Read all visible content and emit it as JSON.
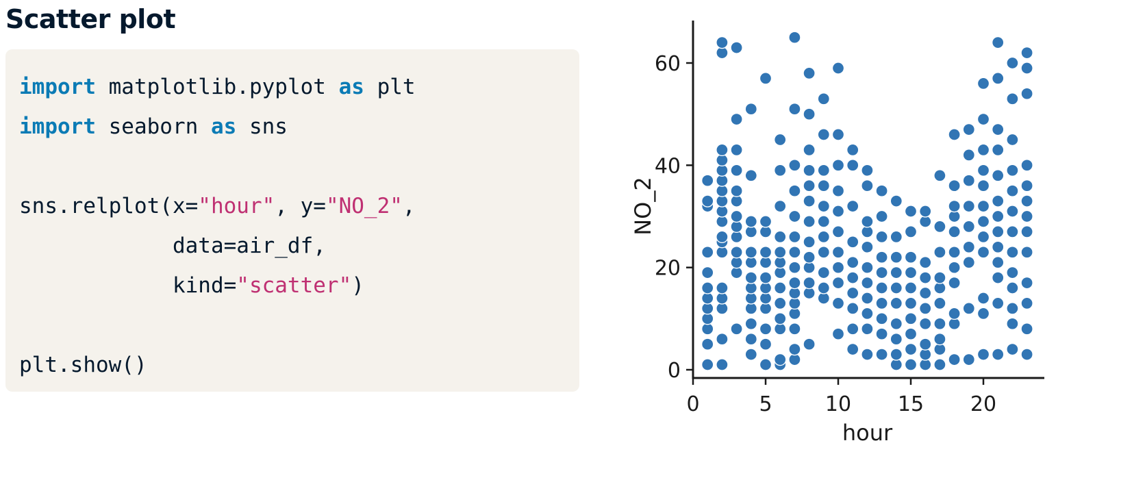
{
  "slide": {
    "title": "Scatter plot"
  },
  "code": {
    "lines": [
      [
        {
          "t": "import",
          "c": "kw"
        },
        {
          "t": " matplotlib.pyplot ",
          "c": "plain"
        },
        {
          "t": "as",
          "c": "kw"
        },
        {
          "t": " plt",
          "c": "plain"
        }
      ],
      [
        {
          "t": "import",
          "c": "kw"
        },
        {
          "t": " seaborn ",
          "c": "plain"
        },
        {
          "t": "as",
          "c": "kw"
        },
        {
          "t": " sns",
          "c": "plain"
        }
      ],
      [],
      [
        {
          "t": "sns.relplot(x=",
          "c": "plain"
        },
        {
          "t": "\"hour\"",
          "c": "str"
        },
        {
          "t": ", y=",
          "c": "plain"
        },
        {
          "t": "\"NO_2\"",
          "c": "str"
        },
        {
          "t": ",",
          "c": "plain"
        }
      ],
      [
        {
          "t": "            data=air_df,",
          "c": "plain"
        }
      ],
      [
        {
          "t": "            kind=",
          "c": "plain"
        },
        {
          "t": "\"scatter\"",
          "c": "str"
        },
        {
          "t": ")",
          "c": "plain"
        }
      ],
      [],
      [
        {
          "t": "plt.show()",
          "c": "plain"
        }
      ]
    ]
  },
  "chart_data": {
    "type": "scatter",
    "title": "",
    "xlabel": "hour",
    "ylabel": "NO_2",
    "xlim": [
      0,
      24
    ],
    "ylim": [
      0,
      67
    ],
    "xticks": [
      0,
      5,
      10,
      15,
      20
    ],
    "yticks": [
      0,
      20,
      40,
      60
    ],
    "grid": false,
    "marker_color": "#3175b4",
    "marker_edge_color": "#ffffff",
    "points": [
      [
        1,
        1
      ],
      [
        1,
        5
      ],
      [
        1,
        8
      ],
      [
        1,
        10
      ],
      [
        1,
        12
      ],
      [
        1,
        14
      ],
      [
        1,
        16
      ],
      [
        1,
        19
      ],
      [
        1,
        23
      ],
      [
        1,
        32
      ],
      [
        1,
        33
      ],
      [
        1,
        37
      ],
      [
        2,
        1
      ],
      [
        2,
        6
      ],
      [
        2,
        12
      ],
      [
        2,
        14
      ],
      [
        2,
        16
      ],
      [
        2,
        23
      ],
      [
        2,
        25
      ],
      [
        2,
        26
      ],
      [
        2,
        29
      ],
      [
        2,
        31
      ],
      [
        2,
        33
      ],
      [
        2,
        35
      ],
      [
        2,
        37
      ],
      [
        2,
        39
      ],
      [
        2,
        41
      ],
      [
        2,
        43
      ],
      [
        2,
        62
      ],
      [
        2,
        64
      ],
      [
        3,
        8
      ],
      [
        3,
        19
      ],
      [
        3,
        21
      ],
      [
        3,
        23
      ],
      [
        3,
        26
      ],
      [
        3,
        28
      ],
      [
        3,
        30
      ],
      [
        3,
        33
      ],
      [
        3,
        35
      ],
      [
        3,
        39
      ],
      [
        3,
        43
      ],
      [
        3,
        49
      ],
      [
        3,
        63
      ],
      [
        4,
        3
      ],
      [
        4,
        6
      ],
      [
        4,
        9
      ],
      [
        4,
        12
      ],
      [
        4,
        14
      ],
      [
        4,
        16
      ],
      [
        4,
        18
      ],
      [
        4,
        21
      ],
      [
        4,
        23
      ],
      [
        4,
        27
      ],
      [
        4,
        29
      ],
      [
        4,
        38
      ],
      [
        4,
        51
      ],
      [
        5,
        1
      ],
      [
        5,
        5
      ],
      [
        5,
        8
      ],
      [
        5,
        12
      ],
      [
        5,
        14
      ],
      [
        5,
        16
      ],
      [
        5,
        18
      ],
      [
        5,
        21
      ],
      [
        5,
        23
      ],
      [
        5,
        27
      ],
      [
        5,
        29
      ],
      [
        5,
        57
      ],
      [
        6,
        1
      ],
      [
        6,
        2
      ],
      [
        6,
        8
      ],
      [
        6,
        10
      ],
      [
        6,
        13
      ],
      [
        6,
        16
      ],
      [
        6,
        19
      ],
      [
        6,
        21
      ],
      [
        6,
        23
      ],
      [
        6,
        26
      ],
      [
        6,
        32
      ],
      [
        6,
        39
      ],
      [
        6,
        45
      ],
      [
        7,
        2
      ],
      [
        7,
        4
      ],
      [
        7,
        8
      ],
      [
        7,
        11
      ],
      [
        7,
        13
      ],
      [
        7,
        15
      ],
      [
        7,
        17
      ],
      [
        7,
        20
      ],
      [
        7,
        23
      ],
      [
        7,
        26
      ],
      [
        7,
        30
      ],
      [
        7,
        35
      ],
      [
        7,
        40
      ],
      [
        7,
        51
      ],
      [
        7,
        65
      ],
      [
        8,
        5
      ],
      [
        8,
        15
      ],
      [
        8,
        17
      ],
      [
        8,
        20
      ],
      [
        8,
        22
      ],
      [
        8,
        25
      ],
      [
        8,
        29
      ],
      [
        8,
        33
      ],
      [
        8,
        36
      ],
      [
        8,
        39
      ],
      [
        8,
        43
      ],
      [
        8,
        50
      ],
      [
        8,
        58
      ],
      [
        9,
        14
      ],
      [
        9,
        16
      ],
      [
        9,
        19
      ],
      [
        9,
        23
      ],
      [
        9,
        26
      ],
      [
        9,
        29
      ],
      [
        9,
        32
      ],
      [
        9,
        36
      ],
      [
        9,
        39
      ],
      [
        9,
        46
      ],
      [
        9,
        53
      ],
      [
        10,
        7
      ],
      [
        10,
        13
      ],
      [
        10,
        17
      ],
      [
        10,
        20
      ],
      [
        10,
        23
      ],
      [
        10,
        27
      ],
      [
        10,
        31
      ],
      [
        10,
        35
      ],
      [
        10,
        40
      ],
      [
        10,
        46
      ],
      [
        10,
        59
      ],
      [
        11,
        4
      ],
      [
        11,
        8
      ],
      [
        11,
        12
      ],
      [
        11,
        15
      ],
      [
        11,
        18
      ],
      [
        11,
        21
      ],
      [
        11,
        25
      ],
      [
        11,
        32
      ],
      [
        11,
        40
      ],
      [
        11,
        43
      ],
      [
        12,
        3
      ],
      [
        12,
        8
      ],
      [
        12,
        11
      ],
      [
        12,
        14
      ],
      [
        12,
        17
      ],
      [
        12,
        20
      ],
      [
        12,
        24
      ],
      [
        12,
        27
      ],
      [
        12,
        29
      ],
      [
        12,
        36
      ],
      [
        12,
        39
      ],
      [
        13,
        3
      ],
      [
        13,
        7
      ],
      [
        13,
        10
      ],
      [
        13,
        13
      ],
      [
        13,
        16
      ],
      [
        13,
        19
      ],
      [
        13,
        22
      ],
      [
        13,
        26
      ],
      [
        13,
        30
      ],
      [
        13,
        35
      ],
      [
        14,
        1
      ],
      [
        14,
        3
      ],
      [
        14,
        6
      ],
      [
        14,
        9
      ],
      [
        14,
        13
      ],
      [
        14,
        16
      ],
      [
        14,
        19
      ],
      [
        14,
        22
      ],
      [
        14,
        26
      ],
      [
        14,
        33
      ],
      [
        15,
        1
      ],
      [
        15,
        4
      ],
      [
        15,
        7
      ],
      [
        15,
        10
      ],
      [
        15,
        13
      ],
      [
        15,
        16
      ],
      [
        15,
        19
      ],
      [
        15,
        22
      ],
      [
        15,
        27
      ],
      [
        15,
        31
      ],
      [
        16,
        1
      ],
      [
        16,
        3
      ],
      [
        16,
        5
      ],
      [
        16,
        9
      ],
      [
        16,
        12
      ],
      [
        16,
        15
      ],
      [
        16,
        18
      ],
      [
        16,
        21
      ],
      [
        16,
        29
      ],
      [
        16,
        31
      ],
      [
        17,
        1
      ],
      [
        17,
        4
      ],
      [
        17,
        6
      ],
      [
        17,
        9
      ],
      [
        17,
        13
      ],
      [
        17,
        16
      ],
      [
        17,
        18
      ],
      [
        17,
        23
      ],
      [
        17,
        28
      ],
      [
        17,
        38
      ],
      [
        18,
        2
      ],
      [
        18,
        9
      ],
      [
        18,
        11
      ],
      [
        18,
        17
      ],
      [
        18,
        20
      ],
      [
        18,
        23
      ],
      [
        18,
        27
      ],
      [
        18,
        30
      ],
      [
        18,
        32
      ],
      [
        18,
        36
      ],
      [
        18,
        46
      ],
      [
        19,
        2
      ],
      [
        19,
        12
      ],
      [
        19,
        21
      ],
      [
        19,
        24
      ],
      [
        19,
        28
      ],
      [
        19,
        32
      ],
      [
        19,
        37
      ],
      [
        19,
        42
      ],
      [
        19,
        47
      ],
      [
        20,
        3
      ],
      [
        20,
        11
      ],
      [
        20,
        14
      ],
      [
        20,
        23
      ],
      [
        20,
        26
      ],
      [
        20,
        29
      ],
      [
        20,
        32
      ],
      [
        20,
        36
      ],
      [
        20,
        39
      ],
      [
        20,
        43
      ],
      [
        20,
        49
      ],
      [
        20,
        56
      ],
      [
        21,
        3
      ],
      [
        21,
        13
      ],
      [
        21,
        18
      ],
      [
        21,
        21
      ],
      [
        21,
        24
      ],
      [
        21,
        27
      ],
      [
        21,
        30
      ],
      [
        21,
        33
      ],
      [
        21,
        38
      ],
      [
        21,
        43
      ],
      [
        21,
        47
      ],
      [
        21,
        57
      ],
      [
        21,
        64
      ],
      [
        22,
        4
      ],
      [
        22,
        9
      ],
      [
        22,
        12
      ],
      [
        22,
        16
      ],
      [
        22,
        19
      ],
      [
        22,
        23
      ],
      [
        22,
        27
      ],
      [
        22,
        31
      ],
      [
        22,
        35
      ],
      [
        22,
        39
      ],
      [
        22,
        45
      ],
      [
        22,
        53
      ],
      [
        22,
        60
      ],
      [
        23,
        3
      ],
      [
        23,
        8
      ],
      [
        23,
        13
      ],
      [
        23,
        17
      ],
      [
        23,
        23
      ],
      [
        23,
        27
      ],
      [
        23,
        30
      ],
      [
        23,
        33
      ],
      [
        23,
        36
      ],
      [
        23,
        40
      ],
      [
        23,
        54
      ],
      [
        23,
        59
      ],
      [
        23,
        62
      ]
    ]
  }
}
